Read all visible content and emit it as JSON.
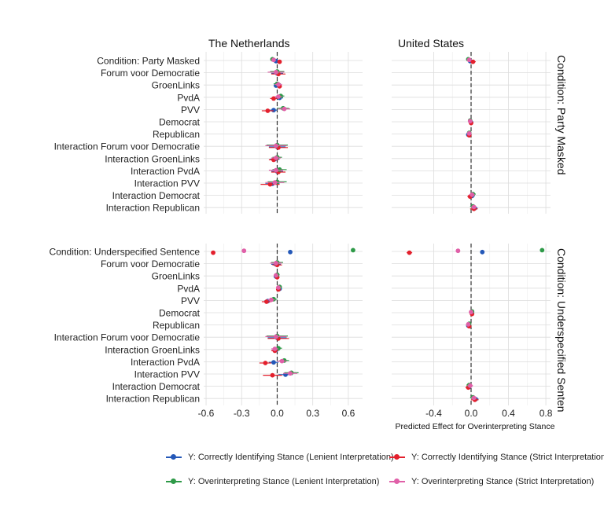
{
  "chart_data": {
    "type": "scatter",
    "subtype": "coefficient-plot",
    "columns": [
      "The Netherlands",
      "United States"
    ],
    "rows": [
      "Condition: Party Masked",
      "Condition: Underspecified Sentence"
    ],
    "row_strip_labels": [
      "Condition: Party Masked",
      "Condition: Underspecified Senten"
    ],
    "xlabel": "Predicted Effect for Overinterpreting Stance",
    "xlim": {
      "The Netherlands": [
        -0.62,
        0.72
      ],
      "United States": [
        -0.85,
        0.85
      ]
    },
    "xticks": {
      "The Netherlands": [
        -0.6,
        -0.3,
        0.0,
        0.3,
        0.6
      ],
      "United States": [
        -0.4,
        0.0,
        0.4,
        0.8
      ]
    },
    "xtick_labels": {
      "The Netherlands": [
        "-0.6",
        "-0.3",
        "0.0",
        "0.3",
        "0.6"
      ],
      "United States": [
        "-0.4",
        "0.0",
        "0.4",
        "0.8"
      ]
    },
    "reference_line": 0,
    "grid": true,
    "legend_position": "bottom",
    "series": [
      {
        "name": "Y: Correctly Identifying Stance (Lenient Interpretation)",
        "color": "#2458b8"
      },
      {
        "name": "Y: Correctly Identifying Stance (Strict Interpretation)",
        "color": "#e3202d"
      },
      {
        "name": "Y: Overinterpreting Stance (Lenient Interpretation)",
        "color": "#2e9a48"
      },
      {
        "name": "Y: Overinterpreting Stance (Strict Interpretation)",
        "color": "#e060a8"
      }
    ],
    "panels": [
      {
        "column": "The Netherlands",
        "row": "Condition: Party Masked",
        "terms": [
          "Condition: Party Masked",
          "Forum voor Democratie",
          "GroenLinks",
          "PvdA",
          "PVV",
          "Democrat",
          "Republican",
          "Interaction Forum voor Democratie",
          "Interaction GroenLinks",
          "Interaction PvdA",
          "Interaction PVV",
          "Interaction Democrat",
          "Interaction Republican"
        ],
        "estimates": [
          [
            [
              -0.01,
              0.015
            ],
            [
              0.02,
              0.015
            ],
            [
              -0.04,
              0.015
            ],
            [
              -0.03,
              0.015
            ]
          ],
          [
            [
              0.0,
              0.05
            ],
            [
              0.01,
              0.06
            ],
            [
              0.0,
              0.06
            ],
            [
              -0.01,
              0.07
            ]
          ],
          [
            [
              -0.01,
              0.02
            ],
            [
              0.02,
              0.02
            ],
            [
              0.0,
              0.03
            ],
            [
              0.01,
              0.03
            ]
          ],
          [
            [
              0.02,
              0.03
            ],
            [
              -0.03,
              0.03
            ],
            [
              0.03,
              0.03
            ],
            [
              0.01,
              0.03
            ]
          ],
          [
            [
              -0.03,
              0.03
            ],
            [
              -0.08,
              0.05
            ],
            [
              0.05,
              0.05
            ],
            [
              0.06,
              0.05
            ]
          ],
          [
            null,
            null,
            null,
            null
          ],
          [
            null,
            null,
            null,
            null
          ],
          [
            [
              0.0,
              0.07
            ],
            [
              0.01,
              0.08
            ],
            [
              0.0,
              0.09
            ],
            [
              -0.01,
              0.09
            ]
          ],
          [
            [
              -0.02,
              0.04
            ],
            [
              -0.03,
              0.04
            ],
            [
              0.0,
              0.04
            ],
            [
              -0.01,
              0.04
            ]
          ],
          [
            [
              0.0,
              0.05
            ],
            [
              0.01,
              0.06
            ],
            [
              0.02,
              0.06
            ],
            [
              -0.01,
              0.06
            ]
          ],
          [
            [
              -0.04,
              0.06
            ],
            [
              -0.06,
              0.08
            ],
            [
              0.0,
              0.08
            ],
            [
              -0.02,
              0.08
            ]
          ],
          [
            null,
            null,
            null,
            null
          ],
          [
            null,
            null,
            null,
            null
          ]
        ]
      },
      {
        "column": "United States",
        "row": "Condition: Party Masked",
        "terms": [
          "Condition: Party Masked",
          "Forum voor Democratie",
          "GroenLinks",
          "PvdA",
          "PVV",
          "Democrat",
          "Republican",
          "Interaction Forum voor Democratie",
          "Interaction GroenLinks",
          "Interaction PvdA",
          "Interaction PVV",
          "Interaction Democrat",
          "Interaction Republican"
        ],
        "estimates": [
          [
            [
              -0.01,
              0.02
            ],
            [
              0.02,
              0.03
            ],
            [
              -0.03,
              0.02
            ],
            [
              -0.02,
              0.02
            ]
          ],
          [
            null,
            null,
            null,
            null
          ],
          [
            null,
            null,
            null,
            null
          ],
          [
            null,
            null,
            null,
            null
          ],
          [
            null,
            null,
            null,
            null
          ],
          [
            [
              0.0,
              0.02
            ],
            [
              0.0,
              0.02
            ],
            [
              -0.01,
              0.02
            ],
            [
              -0.01,
              0.02
            ]
          ],
          [
            [
              -0.03,
              0.02
            ],
            [
              -0.02,
              0.02
            ],
            [
              -0.02,
              0.02
            ],
            [
              -0.02,
              0.02
            ]
          ],
          [
            null,
            null,
            null,
            null
          ],
          [
            null,
            null,
            null,
            null
          ],
          [
            null,
            null,
            null,
            null
          ],
          [
            null,
            null,
            null,
            null
          ],
          [
            [
              0.01,
              0.03
            ],
            [
              -0.01,
              0.03
            ],
            [
              0.02,
              0.03
            ],
            [
              0.01,
              0.03
            ]
          ],
          [
            [
              0.04,
              0.03
            ],
            [
              0.03,
              0.04
            ],
            [
              0.02,
              0.03
            ],
            [
              0.03,
              0.03
            ]
          ]
        ]
      },
      {
        "column": "The Netherlands",
        "row": "Condition: Underspecified Sentence",
        "terms": [
          "Condition: Underspecified Sentence",
          "Forum voor Democratie",
          "GroenLinks",
          "PvdA",
          "PVV",
          "Democrat",
          "Republican",
          "Interaction Forum voor Democratie",
          "Interaction GroenLinks",
          "Interaction PvdA",
          "Interaction PVV",
          "Interaction Democrat",
          "Interaction Republican"
        ],
        "estimates": [
          [
            [
              0.11,
              0.0
            ],
            [
              -0.54,
              0.0
            ],
            [
              0.64,
              0.0
            ],
            [
              -0.28,
              0.0
            ]
          ],
          [
            [
              -0.01,
              0.04
            ],
            [
              0.0,
              0.04
            ],
            [
              0.0,
              0.05
            ],
            [
              -0.01,
              0.05
            ]
          ],
          [
            [
              -0.01,
              0.02
            ],
            [
              0.0,
              0.02
            ],
            [
              0.0,
              0.02
            ],
            [
              -0.01,
              0.02
            ]
          ],
          [
            [
              0.02,
              0.02
            ],
            [
              0.01,
              0.02
            ],
            [
              0.02,
              0.02
            ],
            [
              0.01,
              0.02
            ]
          ],
          [
            [
              -0.08,
              0.03
            ],
            [
              -0.09,
              0.04
            ],
            [
              -0.03,
              0.03
            ],
            [
              -0.05,
              0.03
            ]
          ],
          [
            null,
            null,
            null,
            null
          ],
          [
            null,
            null,
            null,
            null
          ],
          [
            [
              0.0,
              0.08
            ],
            [
              0.01,
              0.09
            ],
            [
              0.0,
              0.09
            ],
            [
              -0.01,
              0.09
            ]
          ],
          [
            [
              -0.01,
              0.03
            ],
            [
              -0.02,
              0.03
            ],
            [
              0.01,
              0.03
            ],
            [
              -0.02,
              0.03
            ]
          ],
          [
            [
              -0.03,
              0.04
            ],
            [
              -0.1,
              0.05
            ],
            [
              0.06,
              0.04
            ],
            [
              0.04,
              0.04
            ]
          ],
          [
            [
              0.07,
              0.06
            ],
            [
              -0.04,
              0.08
            ],
            [
              0.12,
              0.06
            ],
            [
              0.11,
              0.06
            ]
          ],
          [
            null,
            null,
            null,
            null
          ],
          [
            null,
            null,
            null,
            null
          ]
        ]
      },
      {
        "column": "United States",
        "row": "Condition: Underspecified Sentence",
        "terms": [
          "Condition: Underspecified Sentence",
          "Forum voor Democratie",
          "GroenLinks",
          "PvdA",
          "PVV",
          "Democrat",
          "Republican",
          "Interaction Forum voor Democratie",
          "Interaction GroenLinks",
          "Interaction PvdA",
          "Interaction PVV",
          "Interaction Democrat",
          "Interaction Republican"
        ],
        "estimates": [
          [
            [
              0.12,
              0.0
            ],
            [
              -0.66,
              0.03
            ],
            [
              0.76,
              0.0
            ],
            [
              -0.14,
              0.0
            ]
          ],
          [
            null,
            null,
            null,
            null
          ],
          [
            null,
            null,
            null,
            null
          ],
          [
            null,
            null,
            null,
            null
          ],
          [
            null,
            null,
            null,
            null
          ],
          [
            [
              0.01,
              0.02
            ],
            [
              0.01,
              0.02
            ],
            [
              0.01,
              0.02
            ],
            [
              0.0,
              0.02
            ]
          ],
          [
            [
              -0.03,
              0.02
            ],
            [
              -0.02,
              0.02
            ],
            [
              -0.02,
              0.02
            ],
            [
              -0.03,
              0.02
            ]
          ],
          [
            null,
            null,
            null,
            null
          ],
          [
            null,
            null,
            null,
            null
          ],
          [
            null,
            null,
            null,
            null
          ],
          [
            null,
            null,
            null,
            null
          ],
          [
            [
              -0.02,
              0.03
            ],
            [
              -0.03,
              0.03
            ],
            [
              -0.02,
              0.03
            ],
            [
              -0.01,
              0.03
            ]
          ],
          [
            [
              0.05,
              0.03
            ],
            [
              0.04,
              0.04
            ],
            [
              0.02,
              0.03
            ],
            [
              0.03,
              0.03
            ]
          ]
        ]
      }
    ]
  }
}
